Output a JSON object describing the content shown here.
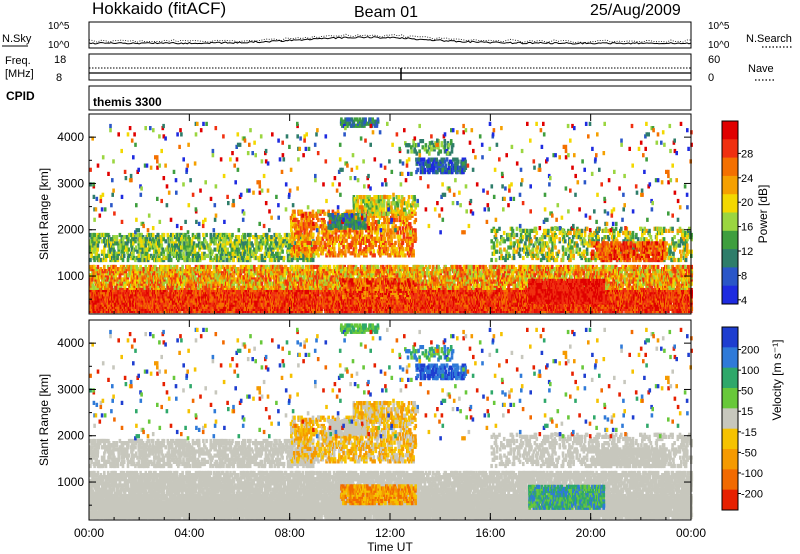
{
  "header": {
    "station": "Hokkaido (fitACF)",
    "beam": "Beam 01",
    "date": "25/Aug/2009"
  },
  "noise_panel": {
    "left_label": "N.Sky",
    "right_label": "N.Search",
    "ticks": [
      "10^5",
      "10^0"
    ]
  },
  "freq_panel": {
    "left_label_1": "Freq.",
    "left_label_2": "[MHz]",
    "left_ticks": [
      "18",
      "8"
    ],
    "right_label": "Nave",
    "right_ticks": [
      "60",
      "0"
    ]
  },
  "cpid_panel": {
    "left_label": "CPID",
    "program": "themis 3300"
  },
  "colors": {
    "power": [
      "#1e2be0",
      "#2a56c8",
      "#2e7d6a",
      "#3e9e3e",
      "#9bd640",
      "#f3d800",
      "#f5a000",
      "#f47000",
      "#f03010",
      "#e00000"
    ],
    "velocity": [
      "#1e3ed0",
      "#2f7ad8",
      "#2fa86a",
      "#68c83a",
      "#c7c7bd",
      "#f5c200",
      "#f59a00",
      "#f26a00",
      "#e62000"
    ]
  },
  "chart_data": [
    {
      "type": "heatmap",
      "name": "power",
      "ylabel": "Slant Range [km]",
      "xlabel": "Time UT",
      "x_ticks": [
        "00:00",
        "04:00",
        "08:00",
        "12:00",
        "16:00",
        "20:00",
        "00:00"
      ],
      "y_ticks": [
        "1000",
        "2000",
        "3000",
        "4000"
      ],
      "xlim": [
        0,
        24
      ],
      "ylim": [
        180,
        4500
      ],
      "colorbar_label": "Power [dB]",
      "colorbar_ticks": [
        "28",
        "24",
        "20",
        "16",
        "12",
        "8",
        "4"
      ]
    },
    {
      "type": "heatmap",
      "name": "velocity",
      "ylabel": "Slant Range [km]",
      "xlabel": "Time UT",
      "x_ticks": [
        "00:00",
        "04:00",
        "08:00",
        "12:00",
        "16:00",
        "20:00",
        "00:00"
      ],
      "y_ticks": [
        "1000",
        "2000",
        "3000",
        "4000"
      ],
      "xlim": [
        0,
        24
      ],
      "ylim": [
        180,
        4500
      ],
      "colorbar_label": "Velocity [m s⁻¹]",
      "colorbar_ticks": [
        "200",
        "100",
        "50",
        "15",
        "-15",
        "-50",
        "-100",
        "-200"
      ]
    }
  ]
}
